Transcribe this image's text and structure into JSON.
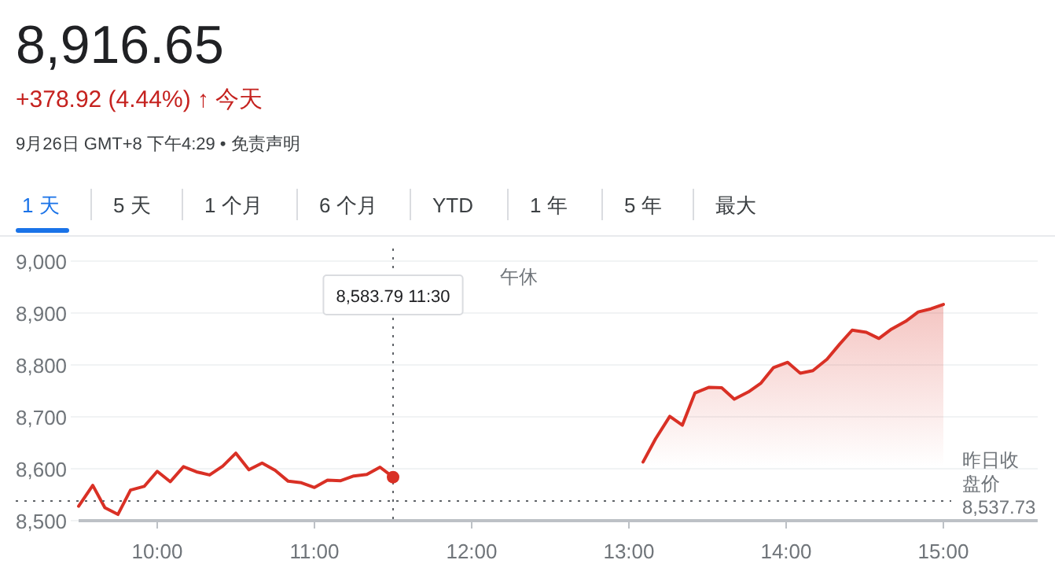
{
  "chart_data": {
    "type": "line",
    "title": "8,916.65",
    "subtitle": "+378.92 (4.44%) ↑ 今天",
    "annotations": [
      "9月26日 GMT+8 下午4:29 • 免责声明",
      "1 天",
      "5 天",
      "1 个月",
      "6 个月",
      "YTD",
      "1 年",
      "5 年",
      "最大",
      "午休",
      "8,583.79  11:30"
    ],
    "series": [
      {
        "type": "line",
        "color": "#d93025",
        "x": [
          9.5,
          9.59,
          9.667,
          9.75,
          9.83,
          9.917,
          10.0,
          10.083,
          10.167,
          10.25,
          10.333,
          10.417,
          10.5,
          10.583,
          10.667,
          10.75,
          10.833,
          10.917,
          11.0,
          11.083,
          11.167,
          11.25,
          11.333,
          11.417,
          11.5
        ],
        "values": [
          8528,
          8568,
          8525,
          8512,
          8559,
          8566,
          8595,
          8575,
          8604,
          8594,
          8588,
          8605,
          8630,
          8598,
          8611,
          8597,
          8576,
          8573,
          8564,
          8578,
          8577,
          8586,
          8589,
          8603,
          8583.79
        ]
      },
      {
        "type": "area",
        "color": "#d93025",
        "x": [
          13.09,
          13.17,
          13.26,
          13.34,
          13.42,
          13.51,
          13.59,
          13.67,
          13.76,
          13.84,
          13.92,
          14.01,
          14.09,
          14.17,
          14.26,
          14.34,
          14.42,
          14.51,
          14.59,
          14.67,
          14.76,
          14.84,
          14.92,
          15.0
        ],
        "values": [
          8613,
          8658,
          8701,
          8684,
          8746,
          8757,
          8756,
          8734,
          8748,
          8765,
          8795,
          8805,
          8784,
          8789,
          8811,
          8840,
          8867,
          8863,
          8851,
          8869,
          8884,
          8902,
          8908,
          8916.65
        ]
      }
    ],
    "xlim": [
      9.5,
      15.6
    ],
    "xticks": [
      {
        "value": 10,
        "label": "10:00"
      },
      {
        "value": 11,
        "label": "11:00"
      },
      {
        "value": 12,
        "label": "12:00"
      },
      {
        "value": 13,
        "label": "13:00"
      },
      {
        "value": 14,
        "label": "14:00"
      },
      {
        "value": 15,
        "label": "15:00"
      }
    ],
    "ylim": [
      8500,
      9000
    ],
    "yticks": [
      {
        "value": 8500,
        "label": "8,500"
      },
      {
        "value": 8600,
        "label": "8,600"
      },
      {
        "value": 8700,
        "label": "8,700"
      },
      {
        "value": 8800,
        "label": "8,800"
      },
      {
        "value": 8900,
        "label": "8,900"
      },
      {
        "value": 9000,
        "label": "9,000"
      }
    ],
    "grid": "y",
    "ref_lines": [
      {
        "axis": "y",
        "value": 8537.73,
        "label": "昨日收盘价\n8,537.73",
        "line_style": "dotted",
        "color": "#5f6368"
      },
      {
        "axis": "x",
        "value": 11.5,
        "line_style": "dotted",
        "color": "#5f6368"
      }
    ]
  }
}
